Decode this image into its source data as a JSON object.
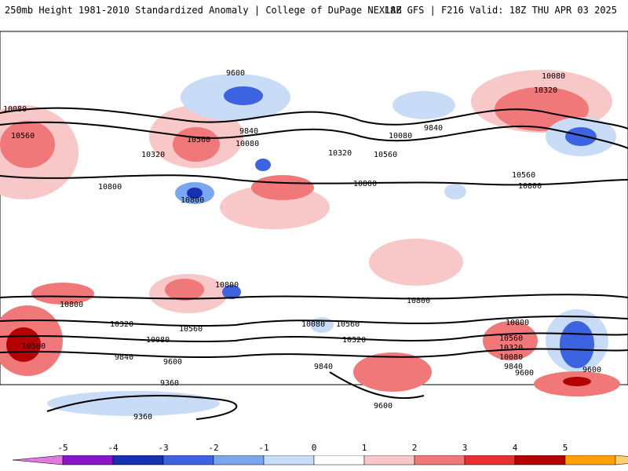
{
  "header": {
    "title": "250mb Height 1981-2010 Standardized Anomaly | College of DuPage NEXLAB",
    "run_info": "18Z GFS | F216 Valid: 18Z THU APR 03 2025"
  },
  "map": {
    "contour_labels": [
      "9600",
      "10080",
      "10560",
      "9840",
      "10080",
      "10320",
      "10800",
      "10560",
      "10800",
      "10080",
      "10320",
      "9840",
      "10080",
      "10320",
      "10560",
      "10800",
      "10560",
      "10800",
      "10800",
      "10800",
      "10320",
      "10560",
      "10080",
      "10560",
      "10320",
      "10800",
      "10800",
      "10560",
      "10320",
      "10080",
      "9840",
      "9600",
      "10560",
      "10080",
      "9840",
      "9600",
      "9840",
      "9360",
      "9600",
      "9360",
      "9600"
    ]
  },
  "colorbar": {
    "ticks": [
      "-5",
      "-4",
      "-3",
      "-2",
      "-1",
      "0",
      "1",
      "2",
      "3",
      "4",
      "5"
    ],
    "colors": [
      "#e07ae0",
      "#8a14c8",
      "#1530b0",
      "#3c64e0",
      "#7aa6f0",
      "#c8dcf8",
      "#ffffff",
      "#f8c8c8",
      "#f07878",
      "#e83030",
      "#b40000",
      "#ffa000",
      "#ffd070"
    ]
  }
}
